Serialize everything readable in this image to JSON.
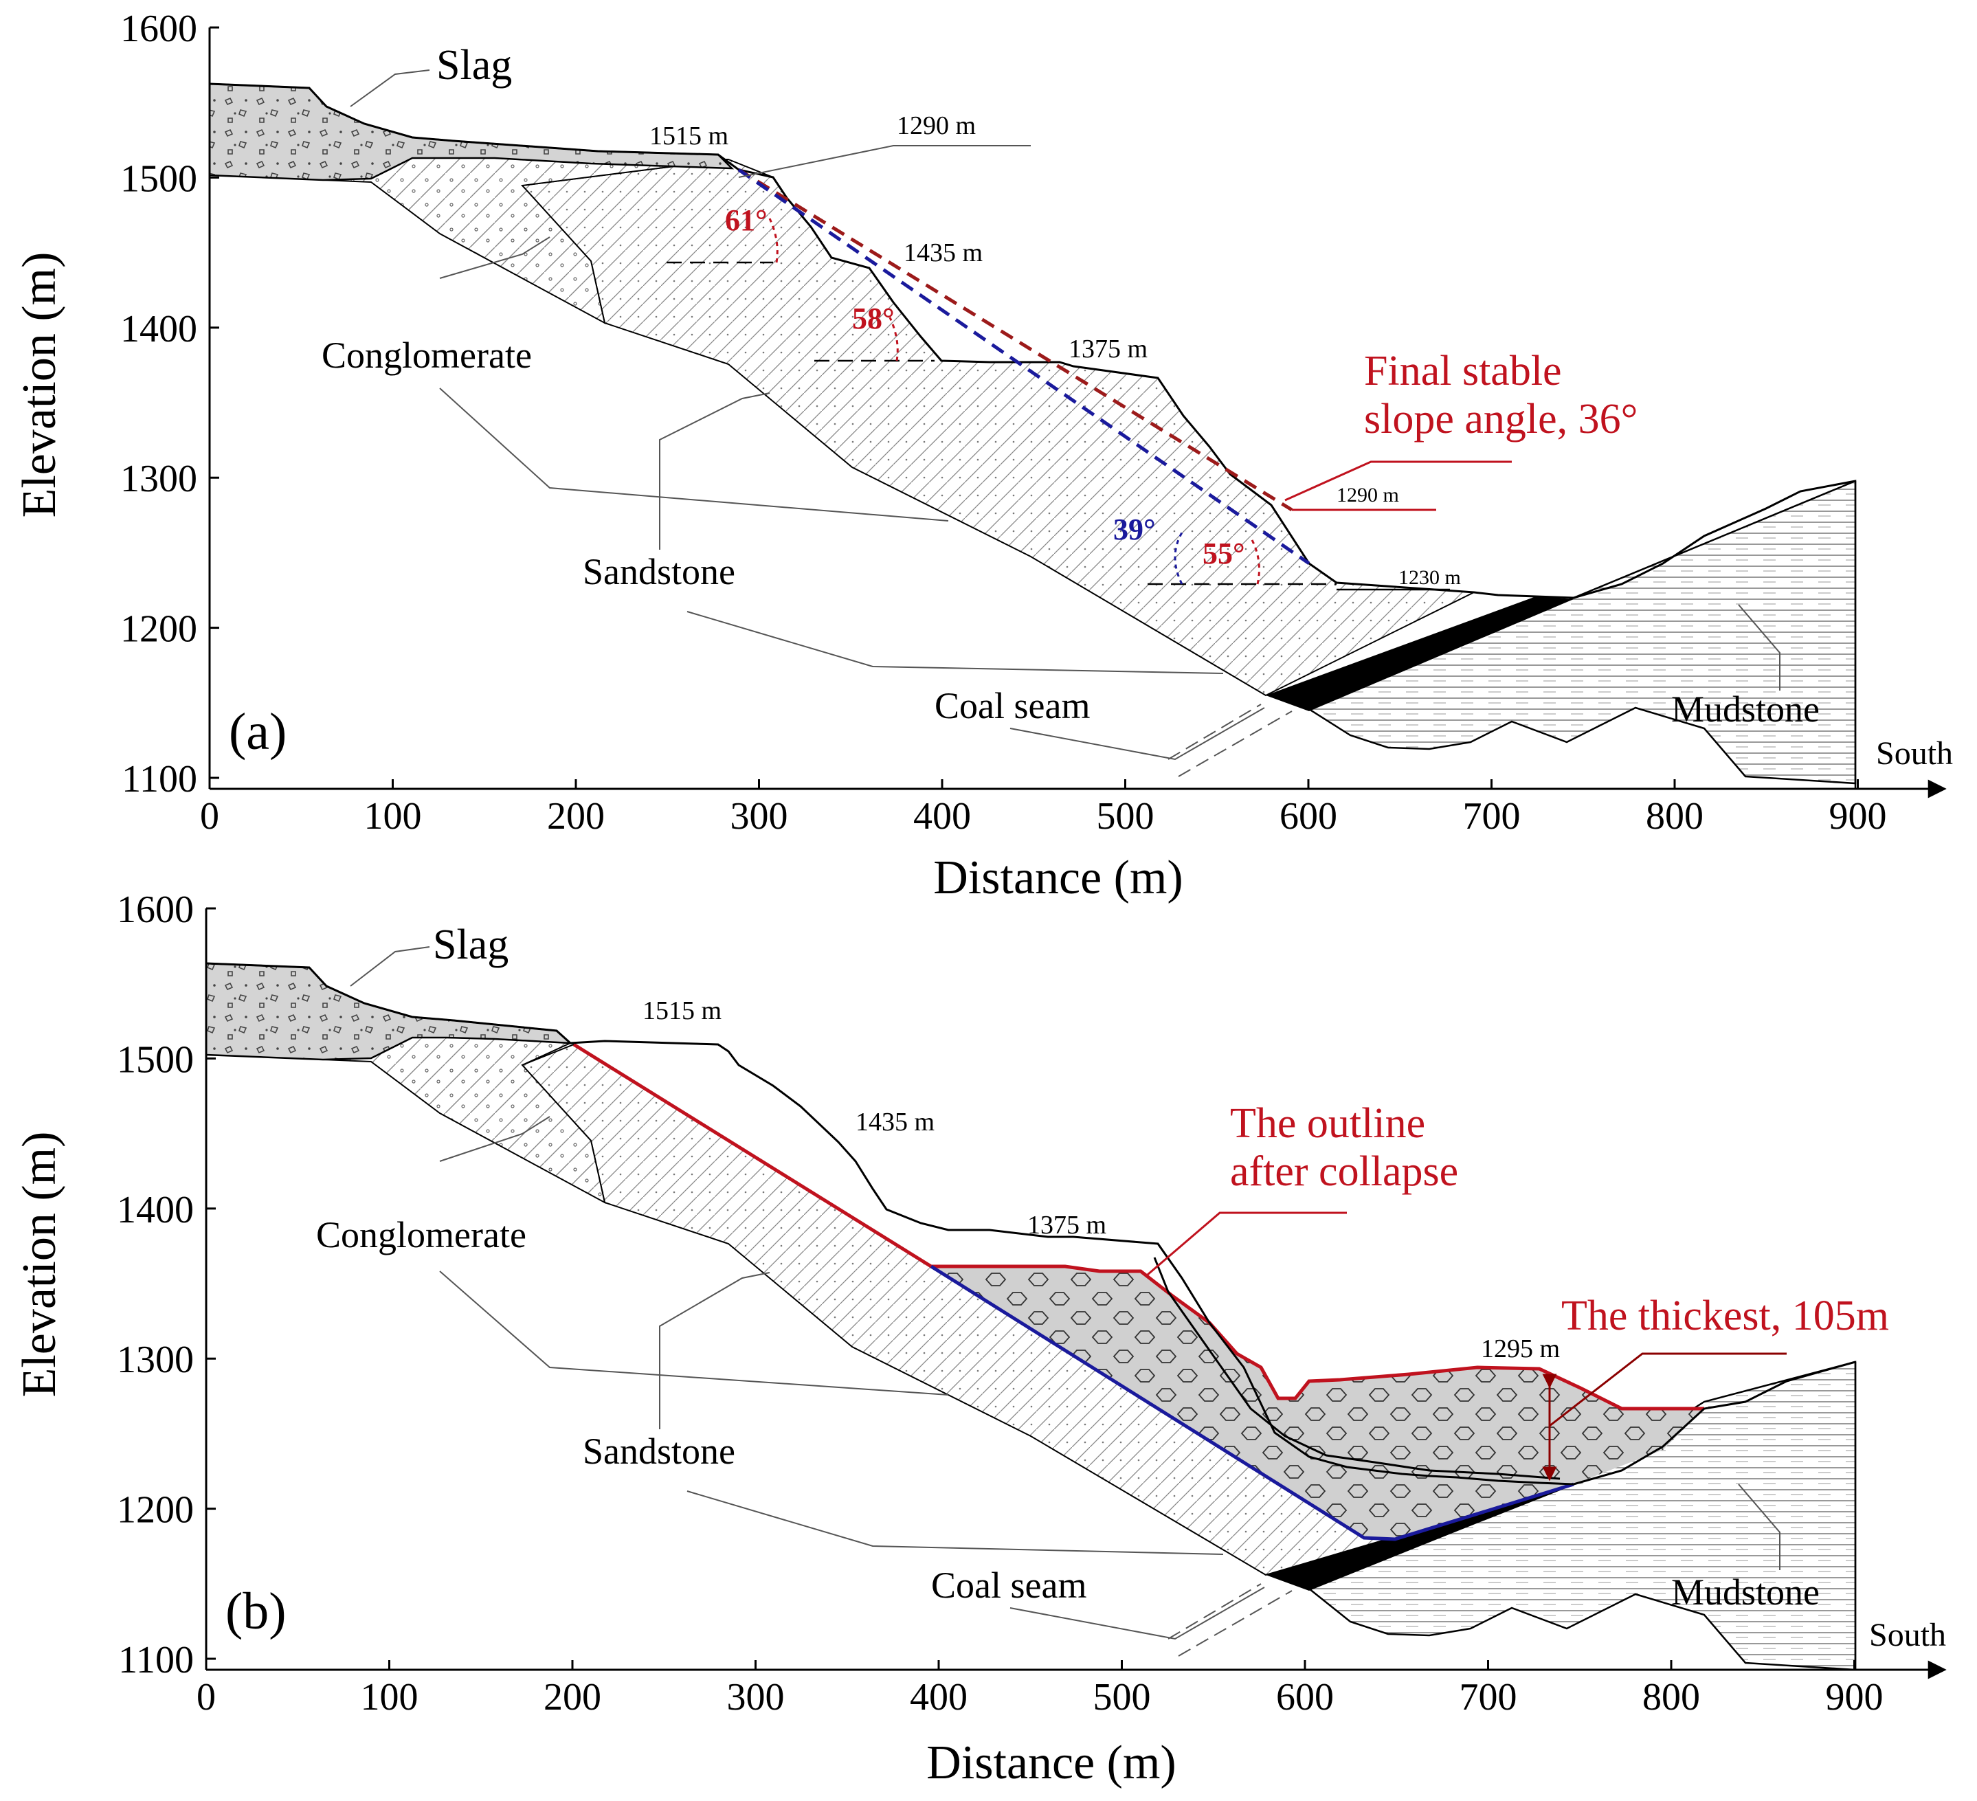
{
  "colors": {
    "red": "#c0121e",
    "blue": "#1a1a9c",
    "black": "#000000",
    "grey": "#d4d4d4",
    "stroke": "#7a7a7a"
  },
  "axes": {
    "ylabel": "Elevation (m)",
    "xlabel": "Distance (m)",
    "x_ticks": [
      "0",
      "100",
      "200",
      "300",
      "400",
      "500",
      "600",
      "700",
      "800",
      "900"
    ],
    "y_ticks": [
      "1600",
      "1500",
      "1400",
      "1300",
      "1200",
      "1100"
    ],
    "direction": "South"
  },
  "panel_a": {
    "label": "(a)",
    "layers": {
      "slag": "Slag",
      "conglomerate": "Conglomerate",
      "sandstone": "Sandstone",
      "coal": "Coal seam",
      "mudstone": "Mudstone"
    },
    "benches": {
      "b1515": "1515 m",
      "b1290_top": "1290 m",
      "b1435": "1435 m",
      "b1375": "1375 m",
      "b1290": "1290 m",
      "b1230": "1230 m"
    },
    "angles": {
      "a61": "61°",
      "a58": "58°",
      "a39": "39°",
      "a55": "55°"
    },
    "note_line1": "Final stable",
    "note_line2": "slope angle, 36°"
  },
  "panel_b": {
    "label": "(b)",
    "layers": {
      "slag": "Slag",
      "conglomerate": "Conglomerate",
      "sandstone": "Sandstone",
      "coal": "Coal seam",
      "mudstone": "Mudstone"
    },
    "benches": {
      "b1515": "1515 m",
      "b1435": "1435 m",
      "b1375": "1375 m",
      "b1295": "1295 m"
    },
    "outline_line1": "The outline",
    "outline_line2": "after collapse",
    "thickest": "The thickest, 105m"
  }
}
